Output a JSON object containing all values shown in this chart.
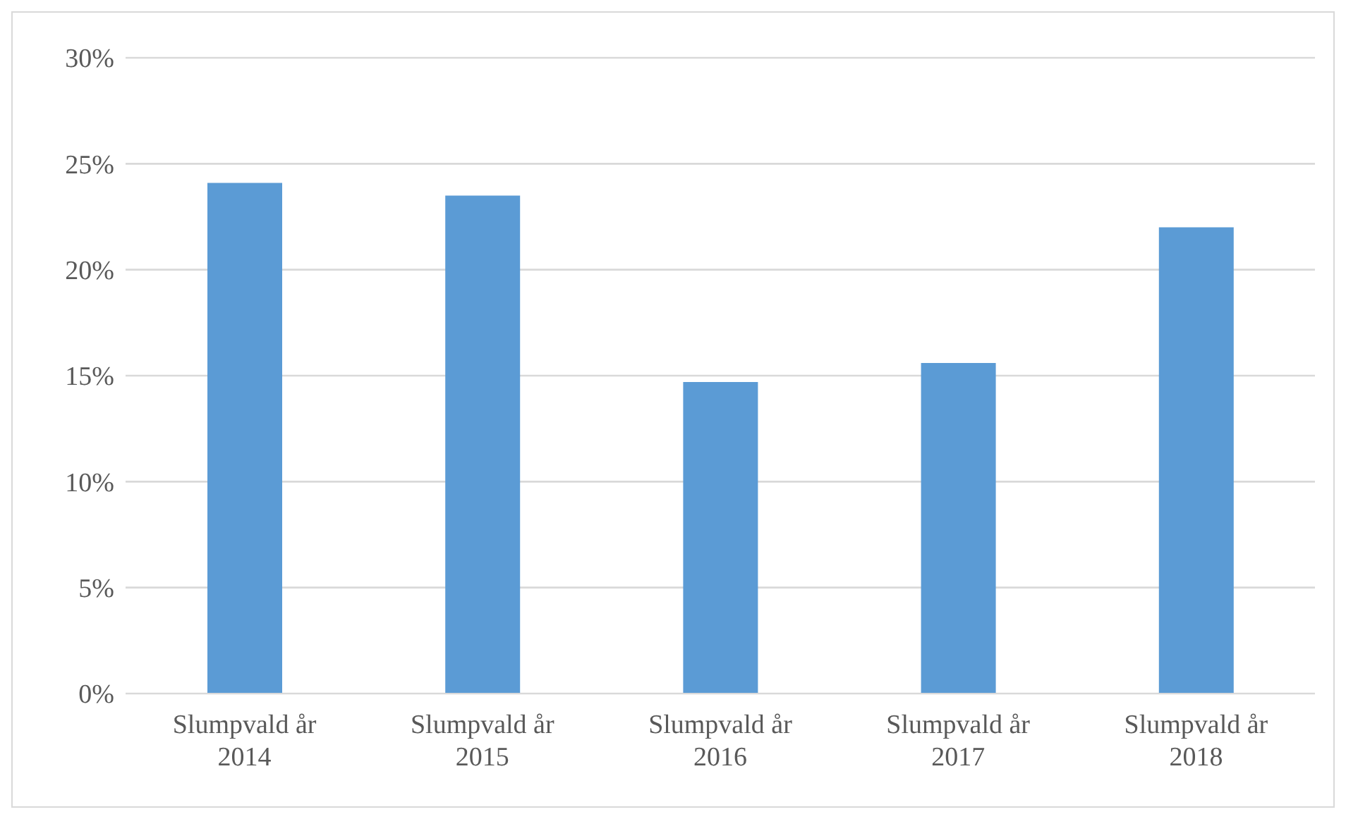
{
  "chart_data": {
    "type": "bar",
    "categories": [
      "Slumpvald år 2014",
      "Slumpvald år 2015",
      "Slumpvald år 2016",
      "Slumpvald år 2017",
      "Slumpvald år 2018"
    ],
    "values": [
      24.1,
      23.5,
      14.7,
      15.6,
      22.0
    ],
    "color": "#5b9bd5",
    "ylim": [
      0,
      30
    ],
    "yticks": [
      {
        "value": 0,
        "label": "0%"
      },
      {
        "value": 5,
        "label": "5%"
      },
      {
        "value": 10,
        "label": "10%"
      },
      {
        "value": 15,
        "label": "15%"
      },
      {
        "value": 20,
        "label": "20%"
      },
      {
        "value": 25,
        "label": "25%"
      },
      {
        "value": 30,
        "label": "30%"
      }
    ],
    "grid": "y"
  }
}
